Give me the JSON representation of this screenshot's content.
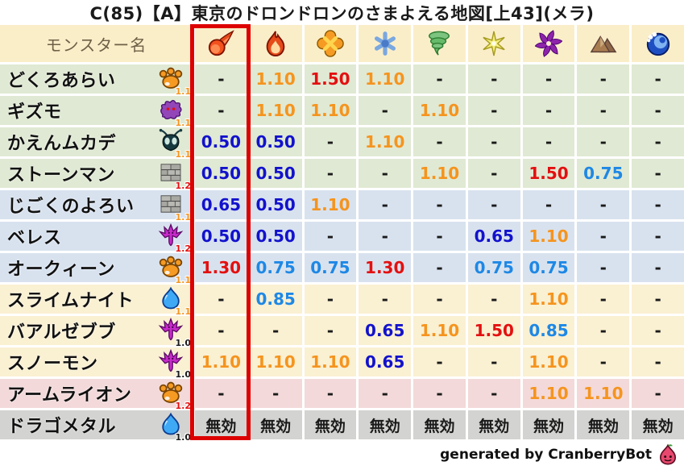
{
  "page_title": "C(85)【A】東京のドロンドロンのさまよえる地図[上43](メラ)",
  "credit": "generated by CranberryBot",
  "table": {
    "monster_column_header": "モンスター名",
    "element_columns": [
      "meteor-fire-icon",
      "flame-icon",
      "burst-explosion-icon",
      "ice-snowflake-icon",
      "wind-tornado-icon",
      "lightning-star-icon",
      "dark-pinwheel-icon",
      "earth-mountain-icon",
      "water-wave-icon"
    ],
    "highlighted_column_index": 0
  },
  "colors": {
    "strong_resist": "#1212cc",
    "mild_resist": "#1e88e5",
    "weak": "#f5941e",
    "very_weak": "#e31010",
    "neutral": "#1a1a1a",
    "row_green": "#e0e9d3",
    "row_blue": "#d8e2ef",
    "row_cream": "#faf0d2",
    "row_pink": "#f3d9d9",
    "row_gray": "#d3d3d1",
    "header_bg": "#faeec9",
    "highlight_border": "#dd0000"
  },
  "chart_data": {
    "type": "table",
    "title": "C(85)【A】東京のドロンドロンのさまよえる地図[上43](メラ)",
    "columns": [
      "モンスター名",
      "meteor-fire-icon",
      "flame-icon",
      "burst-explosion-icon",
      "ice-snowflake-icon",
      "wind-tornado-icon",
      "lightning-star-icon",
      "dark-pinwheel-icon",
      "earth-mountain-icon",
      "water-wave-icon"
    ],
    "rows": [
      {
        "name": "どくろあらい",
        "species_icon": "paw-icon",
        "modifier": "1.1",
        "row_color": "green",
        "values": [
          "-",
          "1.10",
          "1.50",
          "1.10",
          "-",
          "-",
          "-",
          "-",
          "-"
        ]
      },
      {
        "name": "ギズモ",
        "species_icon": "ghost-icon",
        "modifier": "1.1",
        "row_color": "green",
        "values": [
          "-",
          "1.10",
          "1.10",
          "-",
          "1.10",
          "-",
          "-",
          "-",
          "-"
        ]
      },
      {
        "name": "かえんムカデ",
        "species_icon": "bug-icon",
        "modifier": "1.1",
        "row_color": "green",
        "values": [
          "0.50",
          "0.50",
          "-",
          "1.10",
          "-",
          "-",
          "-",
          "-",
          "-"
        ]
      },
      {
        "name": "ストーンマン",
        "species_icon": "bricks-icon",
        "modifier": "1.2",
        "row_color": "green",
        "values": [
          "0.50",
          "0.50",
          "-",
          "-",
          "1.10",
          "-",
          "1.50",
          "0.75",
          "-"
        ]
      },
      {
        "name": "じごくのよろい",
        "species_icon": "bricks-icon",
        "modifier": "1.1",
        "row_color": "blue",
        "values": [
          "0.65",
          "0.50",
          "1.10",
          "-",
          "-",
          "-",
          "-",
          "-",
          "-"
        ]
      },
      {
        "name": "ベレス",
        "species_icon": "trident-icon",
        "modifier": "1.2",
        "row_color": "blue",
        "values": [
          "0.50",
          "0.50",
          "-",
          "-",
          "-",
          "0.65",
          "1.10",
          "-",
          "-"
        ]
      },
      {
        "name": "オークィーン",
        "species_icon": "paw-icon",
        "modifier": "1.1",
        "row_color": "blue",
        "values": [
          "1.30",
          "0.75",
          "0.75",
          "1.30",
          "-",
          "0.75",
          "0.75",
          "-",
          "-"
        ]
      },
      {
        "name": "スライムナイト",
        "species_icon": "slime-icon",
        "modifier": "1.1",
        "row_color": "cream",
        "values": [
          "-",
          "0.85",
          "-",
          "-",
          "-",
          "-",
          "1.10",
          "-",
          "-"
        ]
      },
      {
        "name": "バアルゼブブ",
        "species_icon": "trident-icon",
        "modifier": "1.0",
        "row_color": "cream",
        "values": [
          "-",
          "-",
          "-",
          "0.65",
          "1.10",
          "1.50",
          "0.85",
          "-",
          "-"
        ]
      },
      {
        "name": "スノーモン",
        "species_icon": "trident-icon",
        "modifier": "1.0",
        "row_color": "cream",
        "values": [
          "1.10",
          "1.10",
          "1.10",
          "0.65",
          "-",
          "-",
          "1.10",
          "-",
          "-"
        ]
      },
      {
        "name": "アームライオン",
        "species_icon": "paw-icon",
        "modifier": "1.2",
        "row_color": "pink",
        "values": [
          "-",
          "-",
          "-",
          "-",
          "-",
          "-",
          "1.10",
          "1.10",
          "-"
        ]
      },
      {
        "name": "ドラゴメタル",
        "species_icon": "slime-icon",
        "modifier": "1.0",
        "row_color": "gray",
        "values": [
          "無効",
          "無効",
          "無効",
          "無効",
          "無効",
          "無効",
          "無効",
          "無効",
          "無効"
        ]
      }
    ]
  }
}
